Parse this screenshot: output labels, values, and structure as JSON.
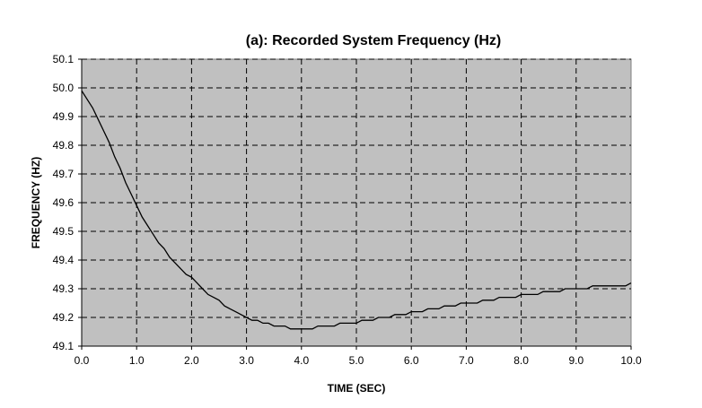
{
  "chart_data": {
    "type": "line",
    "title": "(a): Recorded System Frequency (Hz)",
    "xlabel": "TIME (SEC)",
    "ylabel": "FREQUENCY (HZ)",
    "xlim": [
      0,
      10
    ],
    "ylim": [
      49.1,
      50.1
    ],
    "x_ticks": [
      "0.0",
      "1.0",
      "2.0",
      "3.0",
      "4.0",
      "5.0",
      "6.0",
      "7.0",
      "8.0",
      "9.0",
      "10.0"
    ],
    "y_ticks": [
      "49.1",
      "49.2",
      "49.3",
      "49.4",
      "49.5",
      "49.6",
      "49.7",
      "49.8",
      "49.9",
      "50.0",
      "50.1"
    ],
    "grid": true,
    "legend": "none",
    "colors": {
      "plot_background": "#c0c0c0",
      "line": "#000000",
      "grid": "#000000"
    },
    "series": [
      {
        "x": [
          0.0,
          0.1,
          0.2,
          0.3,
          0.4,
          0.5,
          0.6,
          0.7,
          0.8,
          0.9,
          1.0,
          1.1,
          1.2,
          1.3,
          1.4,
          1.5,
          1.6,
          1.7,
          1.8,
          1.9,
          2.0,
          2.1,
          2.2,
          2.3,
          2.4,
          2.5,
          2.6,
          2.7,
          2.8,
          2.9,
          3.0,
          3.1,
          3.2,
          3.3,
          3.4,
          3.5,
          3.6,
          3.7,
          3.8,
          3.9,
          4.0,
          4.1,
          4.2,
          4.3,
          4.4,
          4.5,
          4.6,
          4.7,
          4.8,
          4.9,
          5.0,
          5.1,
          5.2,
          5.3,
          5.4,
          5.5,
          5.6,
          5.7,
          5.8,
          5.9,
          6.0,
          6.1,
          6.2,
          6.3,
          6.4,
          6.5,
          6.6,
          6.7,
          6.8,
          6.9,
          7.0,
          7.1,
          7.2,
          7.3,
          7.4,
          7.5,
          7.6,
          7.7,
          7.8,
          7.9,
          8.0,
          8.1,
          8.2,
          8.3,
          8.4,
          8.5,
          8.6,
          8.7,
          8.8,
          8.9,
          9.0,
          9.1,
          9.2,
          9.3,
          9.4,
          9.5,
          9.6,
          9.7,
          9.8,
          9.9,
          10.0
        ],
        "values": [
          49.99,
          49.96,
          49.93,
          49.89,
          49.85,
          49.81,
          49.76,
          49.72,
          49.67,
          49.63,
          49.59,
          49.55,
          49.52,
          49.49,
          49.46,
          49.44,
          49.41,
          49.39,
          49.37,
          49.35,
          49.34,
          49.32,
          49.3,
          49.28,
          49.27,
          49.26,
          49.24,
          49.23,
          49.22,
          49.21,
          49.2,
          49.19,
          49.19,
          49.18,
          49.18,
          49.17,
          49.17,
          49.17,
          49.16,
          49.16,
          49.16,
          49.16,
          49.16,
          49.17,
          49.17,
          49.17,
          49.17,
          49.18,
          49.18,
          49.18,
          49.18,
          49.19,
          49.19,
          49.19,
          49.2,
          49.2,
          49.2,
          49.21,
          49.21,
          49.21,
          49.22,
          49.22,
          49.22,
          49.23,
          49.23,
          49.23,
          49.24,
          49.24,
          49.24,
          49.25,
          49.25,
          49.25,
          49.25,
          49.26,
          49.26,
          49.26,
          49.27,
          49.27,
          49.27,
          49.27,
          49.28,
          49.28,
          49.28,
          49.28,
          49.29,
          49.29,
          49.29,
          49.29,
          49.3,
          49.3,
          49.3,
          49.3,
          49.3,
          49.31,
          49.31,
          49.31,
          49.31,
          49.31,
          49.31,
          49.31,
          49.32
        ]
      }
    ]
  }
}
